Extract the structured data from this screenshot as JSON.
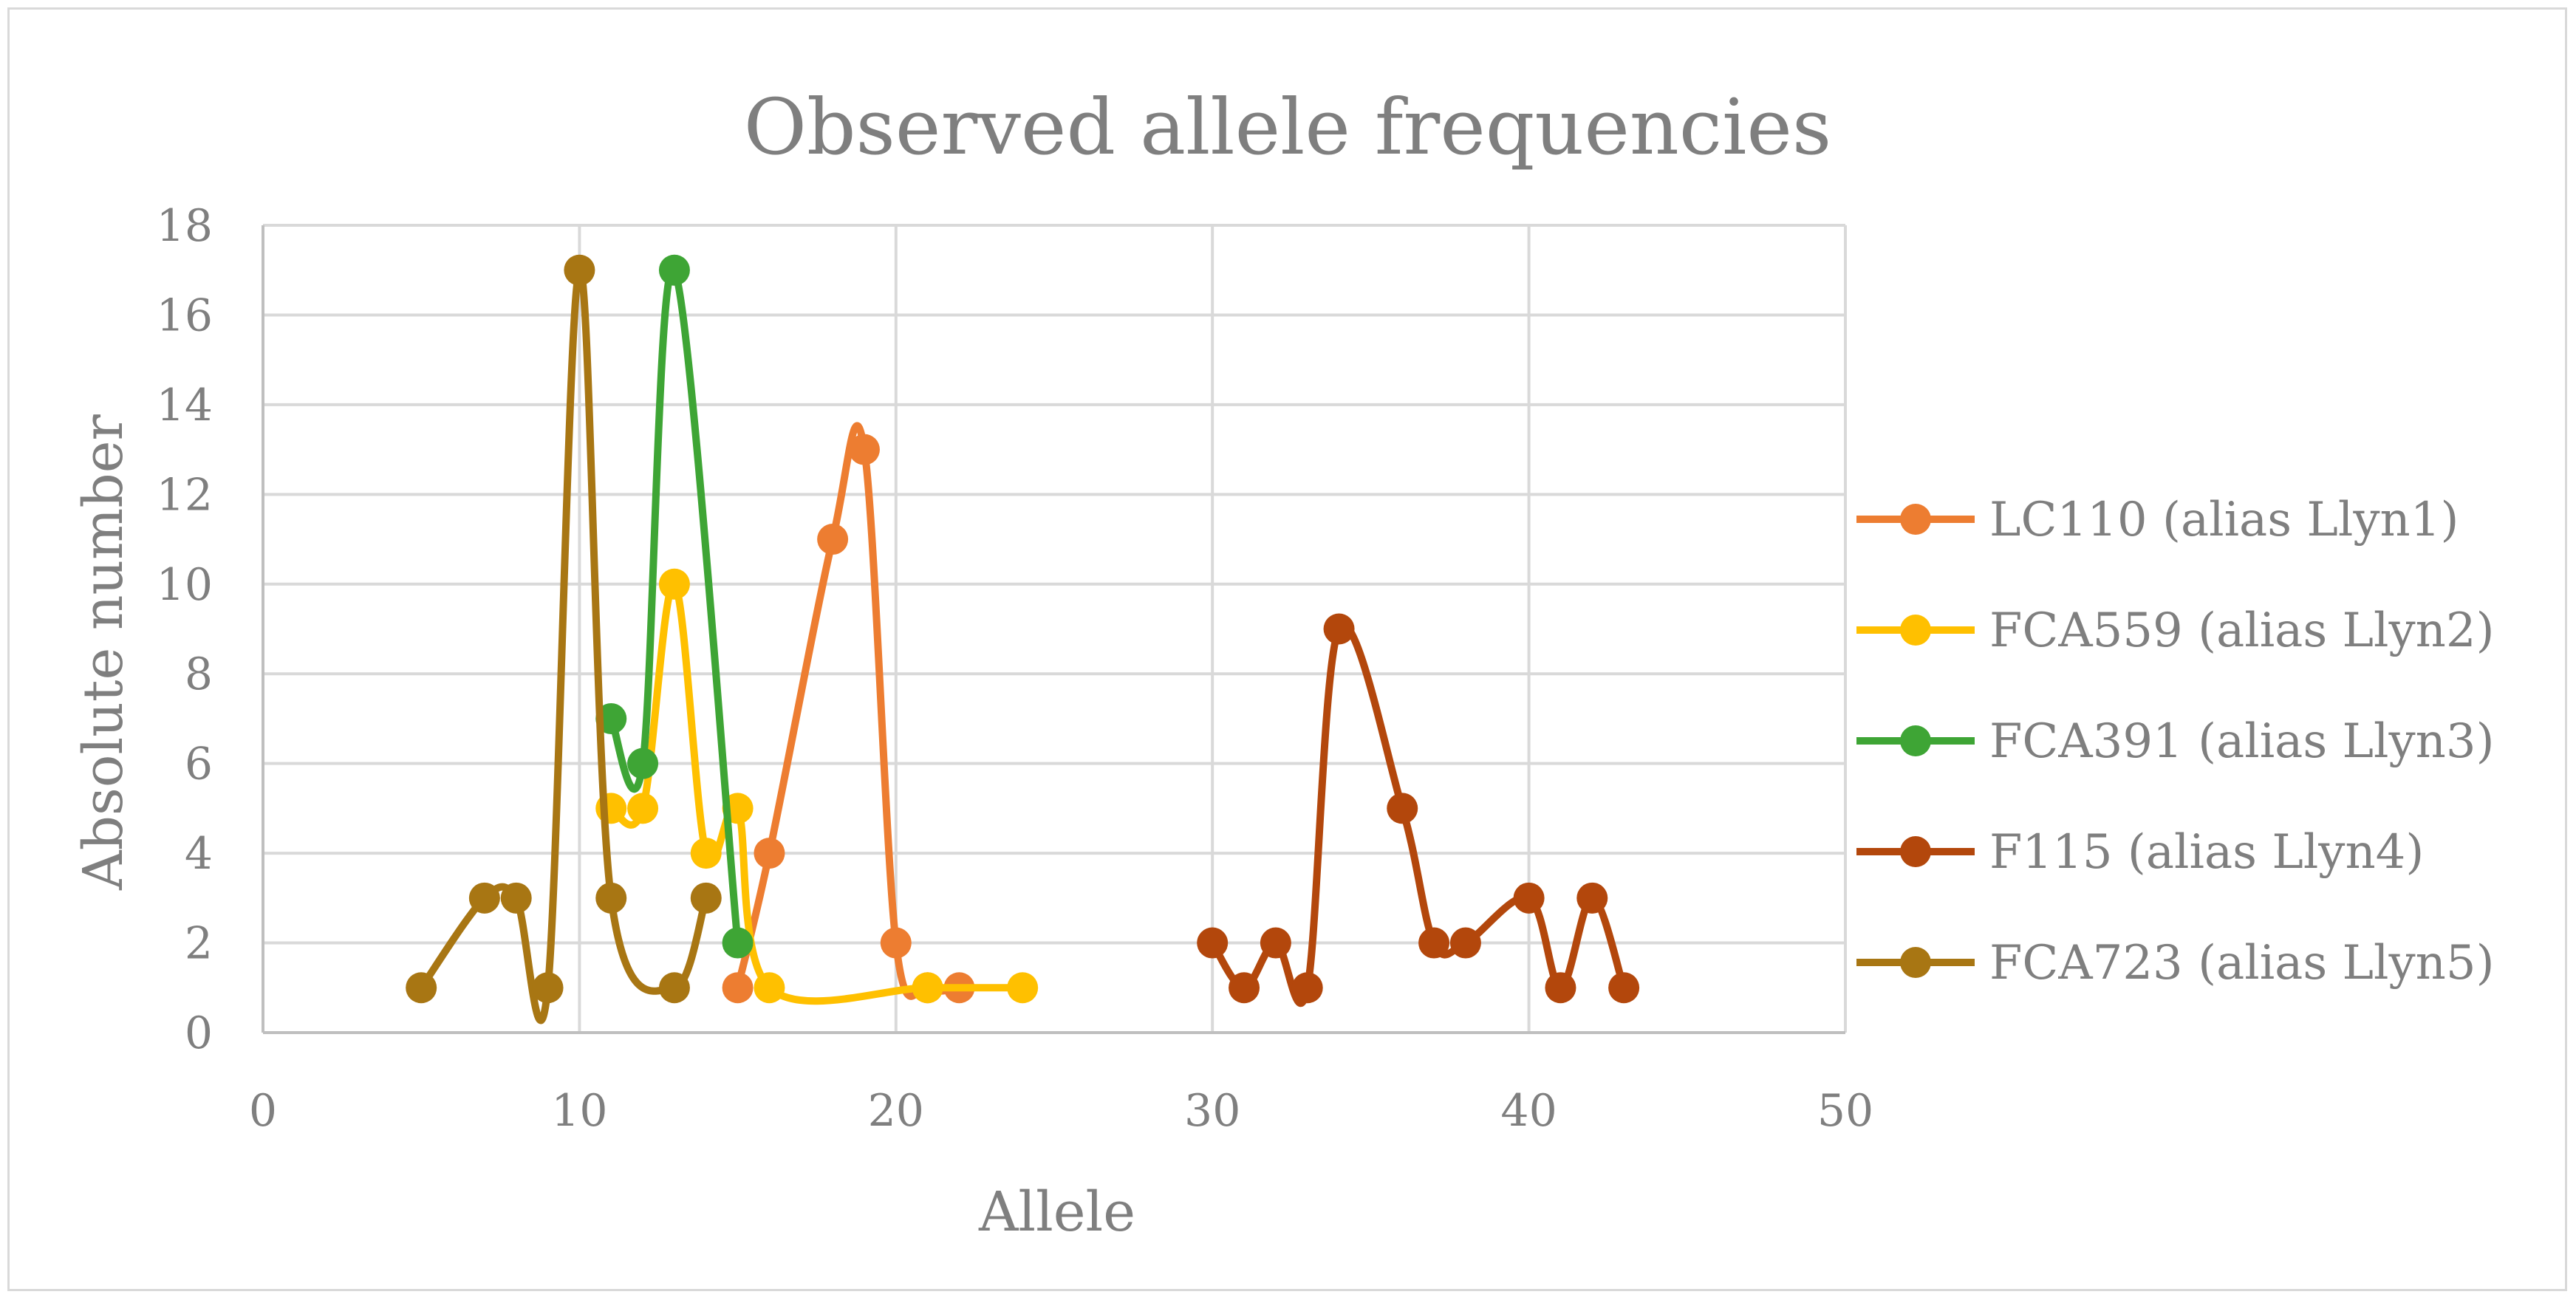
{
  "chart_data": {
    "type": "scatter",
    "title": "Observed allele frequencies",
    "xlabel": "Allele",
    "ylabel": "Absolute number",
    "xlim": [
      0,
      50
    ],
    "ylim": [
      0,
      18
    ],
    "xticks": [
      0,
      10,
      20,
      30,
      40,
      50
    ],
    "yticks": [
      0,
      2,
      4,
      6,
      8,
      10,
      12,
      14,
      16,
      18
    ],
    "grid": true,
    "smooth_lines": true,
    "markers": "circle",
    "legend_position": "right",
    "series": [
      {
        "name": "LC110 (alias Llyn1)",
        "color": "#ed7d31",
        "points": [
          [
            15,
            1
          ],
          [
            16,
            4
          ],
          [
            18,
            11
          ],
          [
            19,
            13
          ],
          [
            20,
            2
          ],
          [
            21,
            1
          ],
          [
            22,
            1
          ]
        ]
      },
      {
        "name": "FCA559 (alias Llyn2)",
        "color": "#ffc000",
        "points": [
          [
            11,
            5
          ],
          [
            12,
            5
          ],
          [
            13,
            10
          ],
          [
            14,
            4
          ],
          [
            15,
            5
          ],
          [
            16,
            1
          ],
          [
            21,
            1
          ],
          [
            24,
            1
          ]
        ]
      },
      {
        "name": "FCA391 (alias Llyn3)",
        "color": "#3ea535",
        "points": [
          [
            11,
            7
          ],
          [
            12,
            6
          ],
          [
            13,
            17
          ],
          [
            15,
            2
          ]
        ]
      },
      {
        "name": "F115 (alias Llyn4)",
        "color": "#b3470c",
        "points": [
          [
            30,
            2
          ],
          [
            31,
            1
          ],
          [
            32,
            2
          ],
          [
            33,
            1
          ],
          [
            34,
            9
          ],
          [
            36,
            5
          ],
          [
            37,
            2
          ],
          [
            38,
            2
          ],
          [
            40,
            3
          ],
          [
            41,
            1
          ],
          [
            42,
            3
          ],
          [
            43,
            1
          ]
        ]
      },
      {
        "name": "FCA723 (alias Llyn5)",
        "color": "#a87613",
        "points": [
          [
            5,
            1
          ],
          [
            7,
            3
          ],
          [
            8,
            3
          ],
          [
            9,
            1
          ],
          [
            10,
            17
          ],
          [
            11,
            3
          ],
          [
            13,
            1
          ],
          [
            14,
            3
          ]
        ]
      }
    ]
  }
}
